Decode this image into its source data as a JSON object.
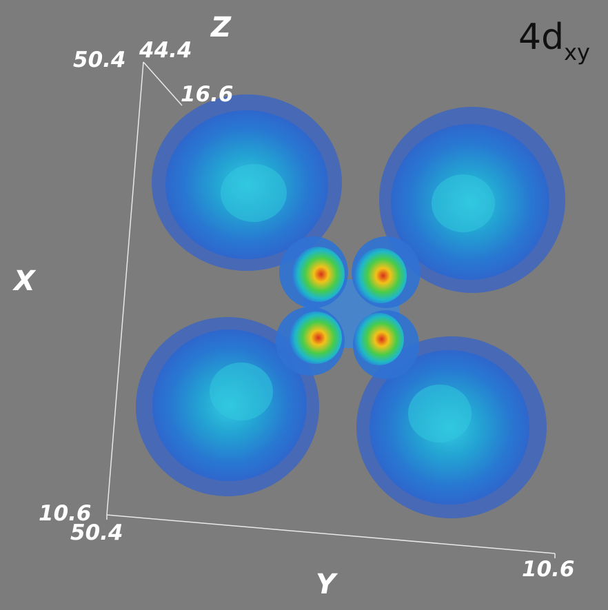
{
  "title": "4d",
  "title_subscript": "xy",
  "axes": {
    "x_label": "X",
    "y_label": "Y",
    "z_label": "Z",
    "ticks": {
      "top_left": "50.4",
      "top_mid": "44.4",
      "top_back": "16.6",
      "bottom_left": "10.6",
      "bottom_left_2": "50.4",
      "bottom_right": "10.6"
    }
  },
  "colors": {
    "background": "#7c7c7c",
    "outer_lobe": "#2e62d4",
    "inner_lobe": "#22c0d6",
    "core_hot": "#e43a12",
    "core_warm": "#f3d21a",
    "core_mid": "#3ccc4e"
  },
  "scene": {
    "type": "orbital-isosurface",
    "orbital": "4dxy",
    "lobe_count": 4,
    "inner_lobe_count": 4
  }
}
